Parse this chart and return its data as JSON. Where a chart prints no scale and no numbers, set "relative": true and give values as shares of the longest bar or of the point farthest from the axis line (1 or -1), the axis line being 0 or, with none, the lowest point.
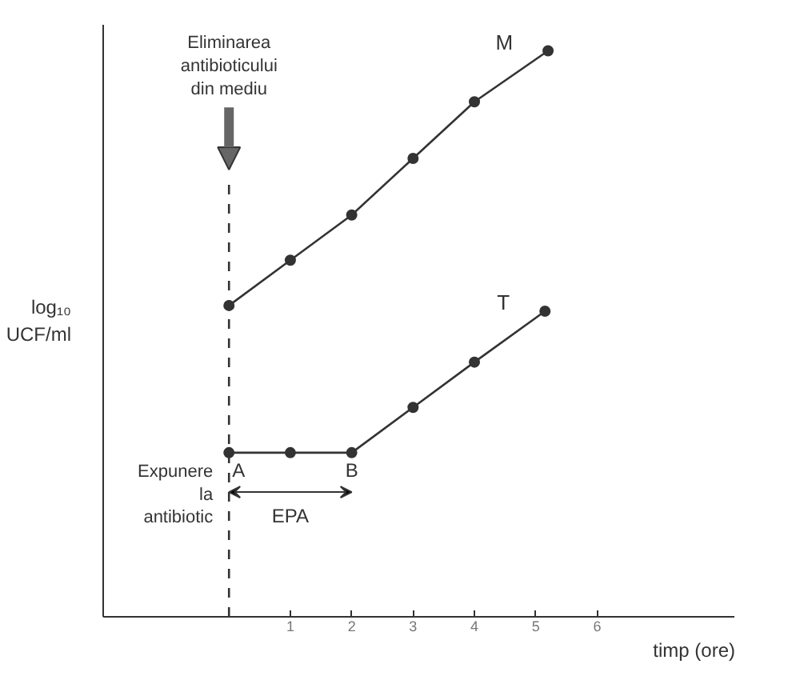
{
  "chart_data": {
    "type": "line",
    "relative": true,
    "xlabel": "timp (ore)",
    "ylabel": "log₁₀\nUCF/ml",
    "x": [
      0,
      1,
      2,
      3,
      4,
      5.2
    ],
    "xlim": [
      -2.05,
      8.25
    ],
    "xticks": [
      {
        "value": 1,
        "label": "1"
      },
      {
        "value": 2,
        "label": "2"
      },
      {
        "value": 3,
        "label": "3"
      },
      {
        "value": 4,
        "label": "4"
      },
      {
        "value": 5,
        "label": "5"
      },
      {
        "value": 6,
        "label": "6"
      }
    ],
    "series": [
      {
        "name": "M",
        "color": "#333333",
        "values": [
          0.55,
          0.63,
          0.71,
          0.81,
          0.91,
          1
        ]
      },
      {
        "name": "T",
        "color": "#333333",
        "x": [
          0,
          1,
          2,
          3,
          4,
          5.15
        ],
        "values": [
          0.29,
          0.29,
          0.29,
          0.37,
          0.45,
          0.54
        ]
      }
    ],
    "ref_lines": [
      {
        "axis": "x",
        "value": 0,
        "label": "Eliminarea\nantibioticului\ndin mediu",
        "line_style": "dashed",
        "color": "#333333"
      }
    ],
    "annotations": [
      "Expunere\nla\nantibiotic",
      {
        "text": "A",
        "x": 0,
        "y": 0.29
      },
      {
        "text": "B",
        "x": 2,
        "y": 0.29
      },
      "EPA"
    ],
    "marker": "circle",
    "line_style": "solid",
    "grid": false
  }
}
